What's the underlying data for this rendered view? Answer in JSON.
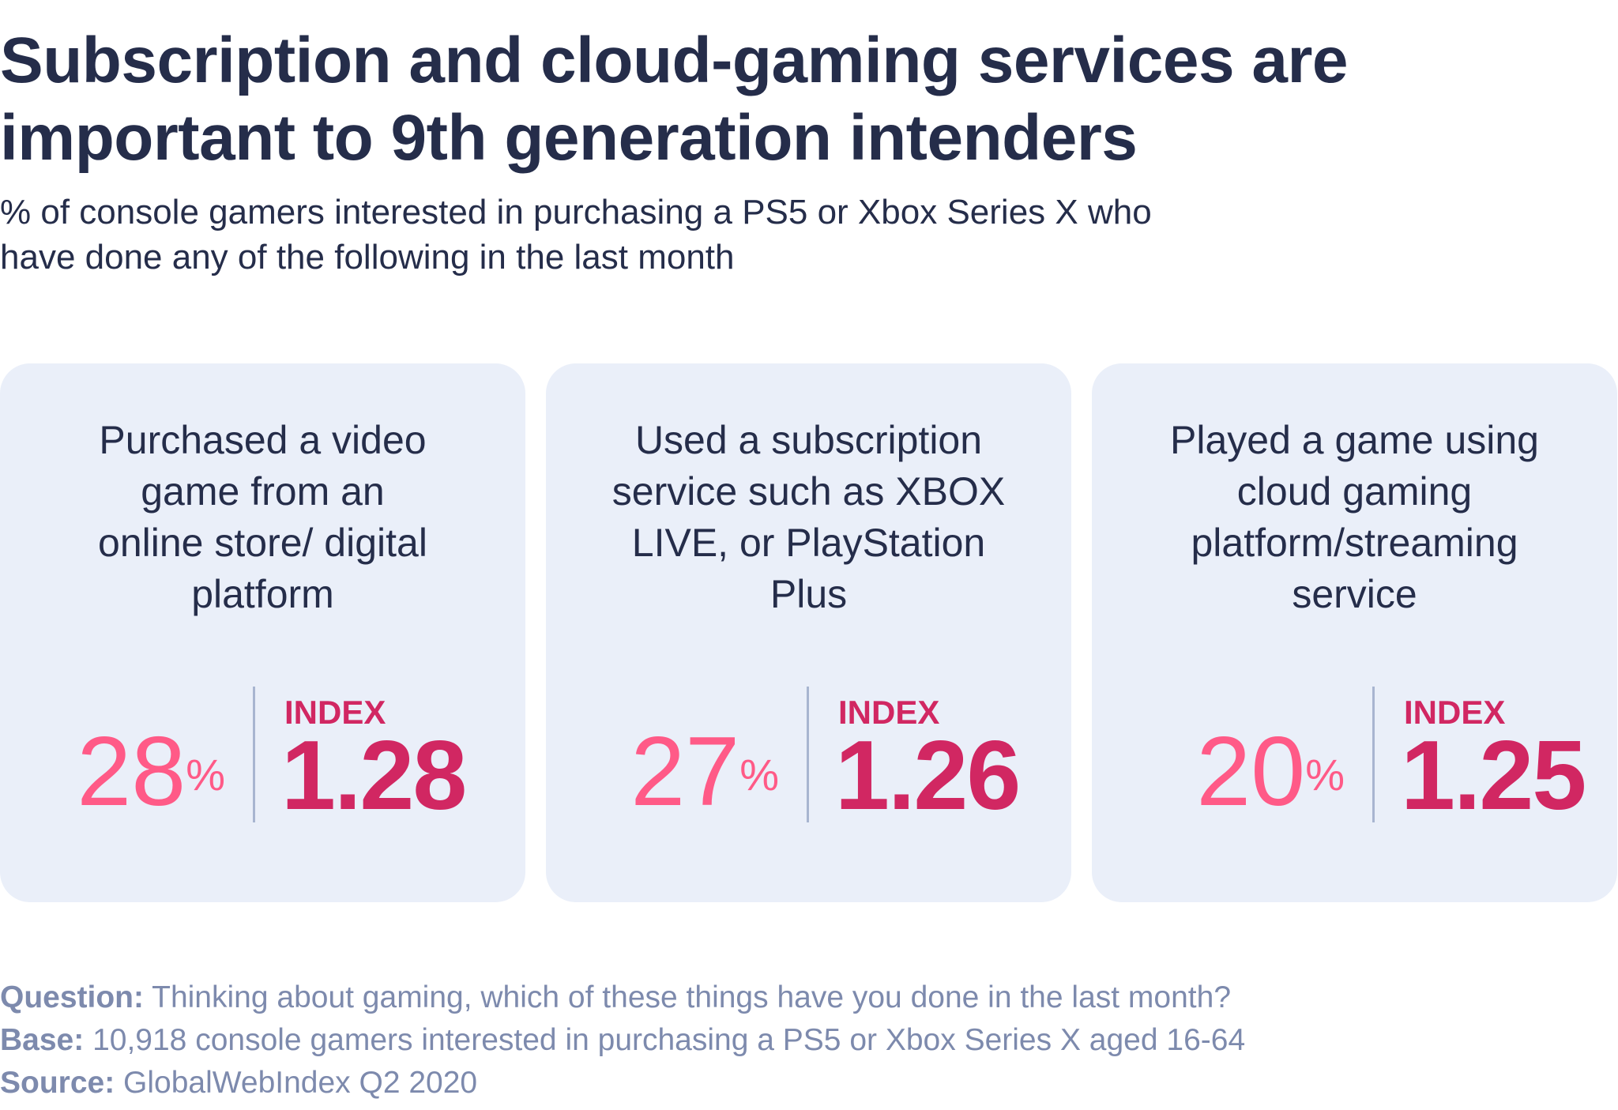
{
  "title": "Subscription and cloud-gaming services are important to 9th generation intenders",
  "subtitle": "% of console gamers interested in purchasing a PS5 or Xbox Series X who have done any of the following in the last month",
  "colors": {
    "title": "#252d4a",
    "percent": "#ff5a87",
    "index": "#d12762",
    "card_bg": "#eaeff9",
    "divider": "#a8b5d0",
    "footer": "#7d8aad"
  },
  "chart_data": {
    "type": "table",
    "title": "Subscription and cloud-gaming services are important to 9th generation intenders",
    "subtitle": "% of console gamers interested in purchasing a PS5 or Xbox Series X who have done any of the following in the last month",
    "categories": [
      "Purchased a video game from an online store/ digital platform",
      "Used a subscription service such as XBOX LIVE, or PlayStation Plus",
      "Played a game using cloud gaming platform/streaming service"
    ],
    "series": [
      {
        "name": "%",
        "values": [
          28,
          27,
          20
        ]
      },
      {
        "name": "INDEX",
        "values": [
          1.28,
          1.26,
          1.25
        ]
      }
    ]
  },
  "cards": [
    {
      "label": "Purchased a video game from an online store/ digital platform",
      "percent": "28",
      "percent_symbol": "%",
      "index_label": "INDEX",
      "index": "1.28"
    },
    {
      "label": "Used a subscription service such as XBOX LIVE, or PlayStation Plus",
      "percent": "27",
      "percent_symbol": "%",
      "index_label": "INDEX",
      "index": "1.26"
    },
    {
      "label": "Played a game using cloud gaming platform/streaming service",
      "percent": "20",
      "percent_symbol": "%",
      "index_label": "INDEX",
      "index": "1.25"
    }
  ],
  "footer": {
    "question_label": "Question:",
    "question": " Thinking about gaming, which of these things have you done in the last month?",
    "base_label": "Base:",
    "base": " 10,918 console gamers interested in purchasing a PS5 or Xbox Series X aged 16-64",
    "source_label": "Source:",
    "source": " GlobalWebIndex Q2 2020"
  }
}
